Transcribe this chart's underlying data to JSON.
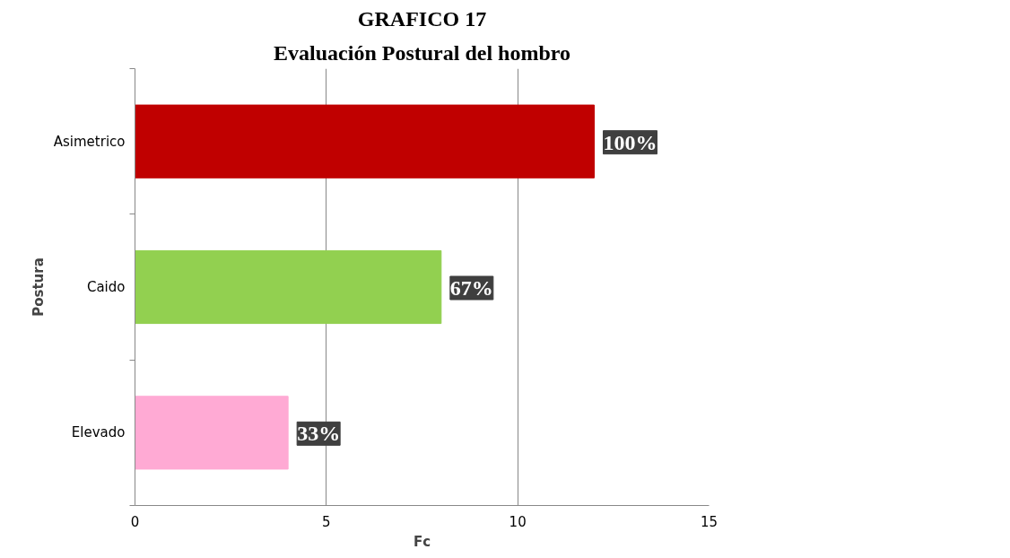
{
  "chart_data": {
    "type": "bar",
    "orientation": "horizontal",
    "title": "GRAFICO 17",
    "subtitle": "Evaluación Postural del hombro",
    "xlabel": "Fc",
    "ylabel": "Postura",
    "categories": [
      "Asimetrico",
      "Caido",
      "Elevado"
    ],
    "values": [
      12,
      8,
      4
    ],
    "colors": [
      "#c00000",
      "#92d050",
      "#ffaad4"
    ],
    "annotations": [
      {
        "text": "100%",
        "x": 12,
        "y": "Asimetrico"
      },
      {
        "text": "67%",
        "x": 8,
        "y": "Caido"
      },
      {
        "text": "33%",
        "x": 4,
        "y": "Elevado"
      }
    ],
    "xlim": [
      0,
      15
    ],
    "xticks": [
      0,
      5,
      10,
      15
    ],
    "grid": "x"
  }
}
